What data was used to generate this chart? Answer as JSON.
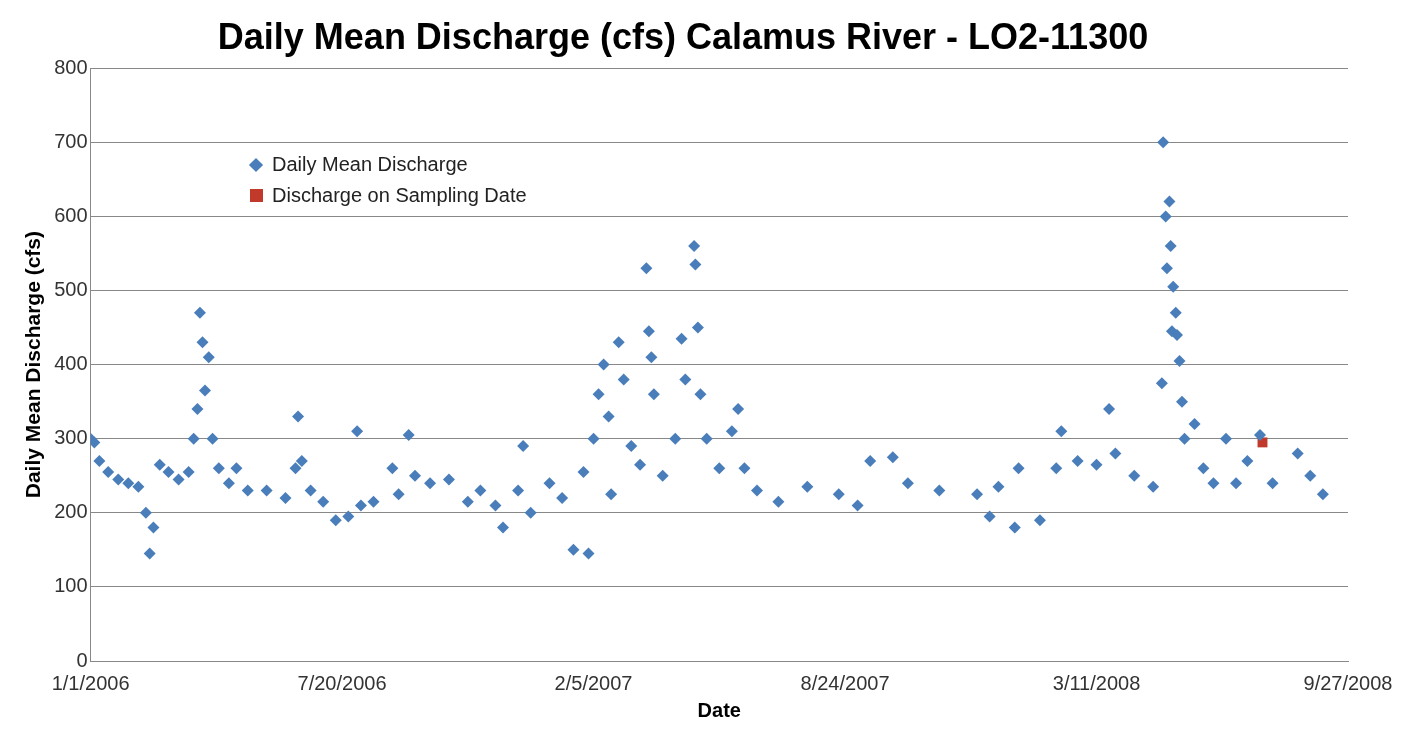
{
  "chart_data": {
    "type": "scatter",
    "title": "Daily Mean Discharge (cfs) Calamus River - LO2-11300",
    "xlabel": "Date",
    "ylabel": "Daily Mean Discharge (cfs)",
    "xlim": [
      "2006-01-01",
      "2008-09-27"
    ],
    "xticks": [
      {
        "value": "2006-01-01",
        "label": "1/1/2006"
      },
      {
        "value": "2006-07-20",
        "label": "7/20/2006"
      },
      {
        "value": "2007-02-05",
        "label": "2/5/2007"
      },
      {
        "value": "2007-08-24",
        "label": "8/24/2007"
      },
      {
        "value": "2008-03-11",
        "label": "3/11/2008"
      },
      {
        "value": "2008-09-27",
        "label": "9/27/2008"
      }
    ],
    "ylim": [
      0,
      800
    ],
    "yticks": [
      0,
      100,
      200,
      300,
      400,
      500,
      600,
      700,
      800
    ],
    "grid": "y",
    "legend": "top left",
    "series": [
      {
        "name": "Daily Mean Discharge",
        "color": "#4a7ebb",
        "marker": "diamond",
        "x": [
          "2006-01-01",
          "2006-01-04",
          "2006-01-08",
          "2006-01-15",
          "2006-01-23",
          "2006-01-31",
          "2006-02-08",
          "2006-02-14",
          "2006-02-17",
          "2006-02-20",
          "2006-02-25",
          "2006-03-04",
          "2006-03-12",
          "2006-03-20",
          "2006-03-24",
          "2006-03-27",
          "2006-03-29",
          "2006-03-31",
          "2006-04-02",
          "2006-04-05",
          "2006-04-08",
          "2006-04-13",
          "2006-04-21",
          "2006-04-27",
          "2006-05-06",
          "2006-05-21",
          "2006-06-05",
          "2006-06-13",
          "2006-06-15",
          "2006-06-18",
          "2006-06-25",
          "2006-07-05",
          "2006-07-15",
          "2006-07-25",
          "2006-08-01",
          "2006-08-04",
          "2006-08-14",
          "2006-08-29",
          "2006-09-03",
          "2006-09-11",
          "2006-09-16",
          "2006-09-28",
          "2006-10-13",
          "2006-10-28",
          "2006-11-07",
          "2006-11-19",
          "2006-11-25",
          "2006-12-07",
          "2006-12-11",
          "2006-12-17",
          "2007-01-01",
          "2007-01-11",
          "2007-01-20",
          "2007-01-28",
          "2007-02-01",
          "2007-02-05",
          "2007-02-09",
          "2007-02-13",
          "2007-02-17",
          "2007-02-19",
          "2007-02-25",
          "2007-03-01",
          "2007-03-07",
          "2007-03-14",
          "2007-03-19",
          "2007-03-21",
          "2007-03-23",
          "2007-03-25",
          "2007-04-01",
          "2007-04-11",
          "2007-04-16",
          "2007-04-19",
          "2007-04-26",
          "2007-04-27",
          "2007-04-29",
          "2007-05-01",
          "2007-05-06",
          "2007-05-16",
          "2007-05-26",
          "2007-05-31",
          "2007-06-05",
          "2007-06-15",
          "2007-07-02",
          "2007-07-25",
          "2007-08-19",
          "2007-09-03",
          "2007-09-13",
          "2007-10-01",
          "2007-10-13",
          "2007-11-07",
          "2007-12-07",
          "2007-12-17",
          "2007-12-24",
          "2008-01-06",
          "2008-01-09",
          "2008-01-26",
          "2008-02-08",
          "2008-02-12",
          "2008-02-25",
          "2008-03-11",
          "2008-03-21",
          "2008-03-26",
          "2008-04-10",
          "2008-04-25",
          "2008-05-02",
          "2008-05-03",
          "2008-05-05",
          "2008-05-06",
          "2008-05-08",
          "2008-05-09",
          "2008-05-10",
          "2008-05-11",
          "2008-05-13",
          "2008-05-14",
          "2008-05-16",
          "2008-05-18",
          "2008-05-20",
          "2008-05-28",
          "2008-06-04",
          "2008-06-12",
          "2008-06-22",
          "2008-06-30",
          "2008-07-09",
          "2008-07-19",
          "2008-07-29",
          "2008-08-18",
          "2008-08-28",
          "2008-09-07"
        ],
        "values": [
          300,
          295,
          270,
          255,
          245,
          240,
          235,
          200,
          145,
          180,
          265,
          255,
          245,
          255,
          300,
          340,
          470,
          430,
          365,
          410,
          300,
          260,
          240,
          260,
          230,
          230,
          220,
          260,
          330,
          270,
          230,
          215,
          190,
          195,
          310,
          210,
          215,
          260,
          225,
          305,
          250,
          240,
          245,
          215,
          230,
          210,
          180,
          230,
          290,
          200,
          240,
          220,
          150,
          255,
          145,
          300,
          360,
          400,
          330,
          225,
          430,
          380,
          290,
          265,
          530,
          445,
          410,
          360,
          250,
          300,
          435,
          380,
          560,
          535,
          450,
          360,
          300,
          260,
          310,
          340,
          260,
          230,
          215,
          235,
          225,
          210,
          270,
          275,
          240,
          230,
          225,
          195,
          235,
          180,
          260,
          190,
          260,
          310,
          270,
          265,
          340,
          280,
          250,
          235,
          375,
          700,
          600,
          530,
          620,
          560,
          445,
          505,
          470,
          440,
          405,
          350,
          300,
          320,
          260,
          240,
          300,
          240,
          270,
          305,
          240,
          280,
          250,
          225
        ]
      },
      {
        "name": "Discharge on Sampling Date",
        "color": "#c0392b",
        "marker": "square",
        "x": [
          "2008-07-21"
        ],
        "values": [
          295
        ]
      }
    ]
  }
}
